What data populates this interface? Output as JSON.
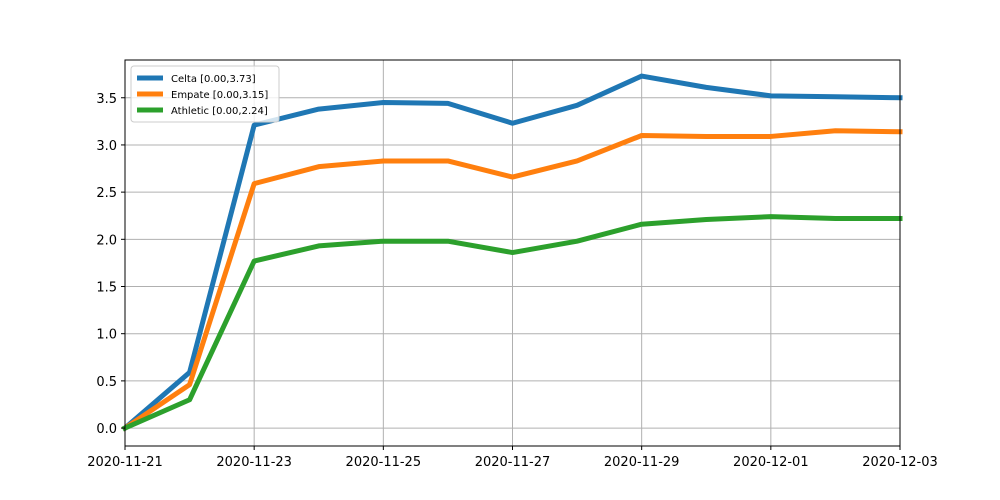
{
  "chart_data": {
    "type": "line",
    "title": "",
    "xlabel": "",
    "ylabel": "",
    "x": [
      "2020-11-21",
      "2020-11-22",
      "2020-11-23",
      "2020-11-24",
      "2020-11-25",
      "2020-11-26",
      "2020-11-27",
      "2020-11-28",
      "2020-11-29",
      "2020-11-30",
      "2020-12-01",
      "2020-12-02",
      "2020-12-03"
    ],
    "xlim": [
      "2020-11-21",
      "2020-12-03"
    ],
    "x_ticks": [
      "2020-11-21",
      "2020-11-23",
      "2020-11-25",
      "2020-11-27",
      "2020-11-29",
      "2020-12-01",
      "2020-12-03"
    ],
    "ylim": [
      -0.19,
      3.9
    ],
    "y_ticks": [
      "0.0",
      "0.5",
      "1.0",
      "1.5",
      "2.0",
      "2.5",
      "3.0",
      "3.5"
    ],
    "grid": true,
    "legend_position": "top-left",
    "series": [
      {
        "name": "Celta [0.00,3.73]",
        "color": "#1f77b4",
        "values": [
          0.0,
          0.59,
          3.21,
          3.38,
          3.45,
          3.44,
          3.23,
          3.42,
          3.73,
          3.61,
          3.52,
          3.51,
          3.5
        ]
      },
      {
        "name": "Empate [0.00,3.15]",
        "color": "#ff7f0e",
        "values": [
          0.0,
          0.46,
          2.59,
          2.77,
          2.83,
          2.83,
          2.66,
          2.83,
          3.1,
          3.09,
          3.09,
          3.15,
          3.14
        ]
      },
      {
        "name": "Athletic [0.00,2.24]",
        "color": "#2ca02c",
        "values": [
          0.0,
          0.3,
          1.77,
          1.93,
          1.98,
          1.98,
          1.86,
          1.98,
          2.16,
          2.21,
          2.24,
          2.22,
          2.22
        ]
      }
    ]
  }
}
